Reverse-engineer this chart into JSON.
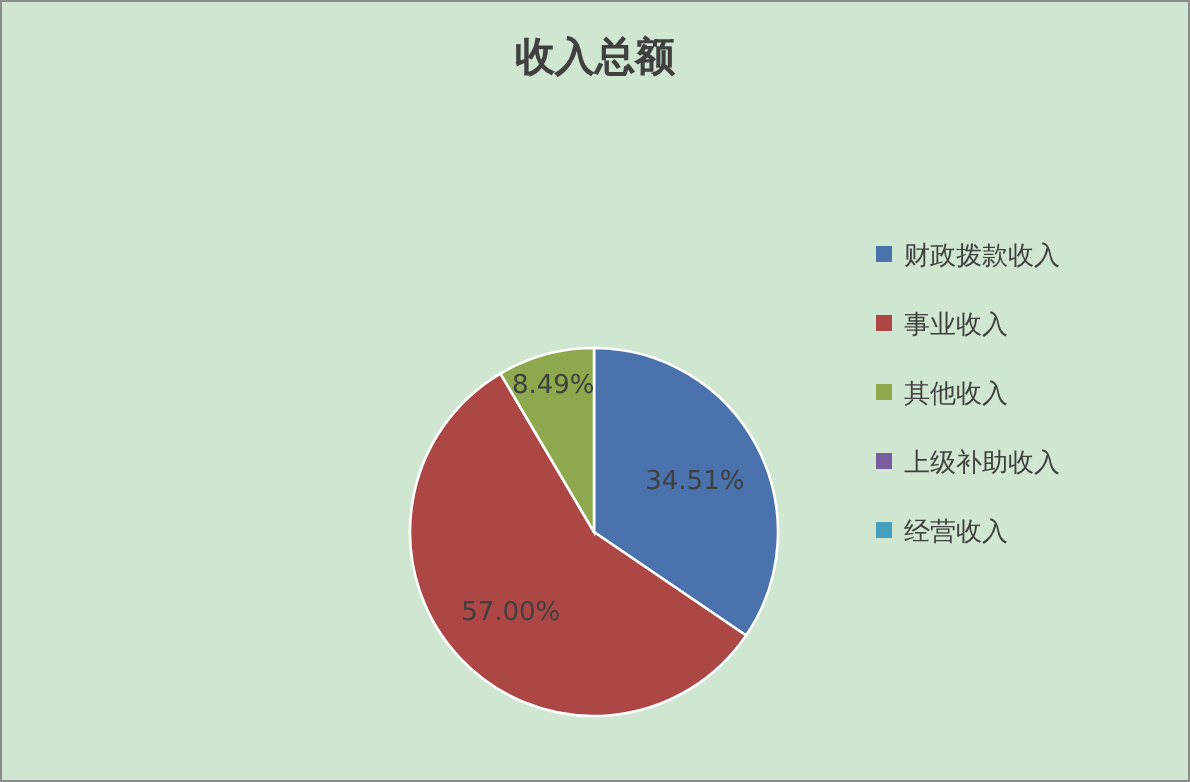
{
  "chart_data": {
    "type": "pie",
    "title": "收入总额",
    "categories": [
      "财政拨款收入",
      "事业收入",
      "其他收入",
      "上级补助收入",
      "经营收入"
    ],
    "values": [
      34.51,
      57.0,
      8.49,
      0,
      0
    ],
    "colors": [
      "#4a72ad",
      "#ac4745",
      "#8ea84e",
      "#7b5c9e",
      "#43a0bd"
    ],
    "value_labels": [
      "34.51%",
      "57.00%",
      "8.49%",
      null,
      null
    ],
    "legend": "right"
  }
}
